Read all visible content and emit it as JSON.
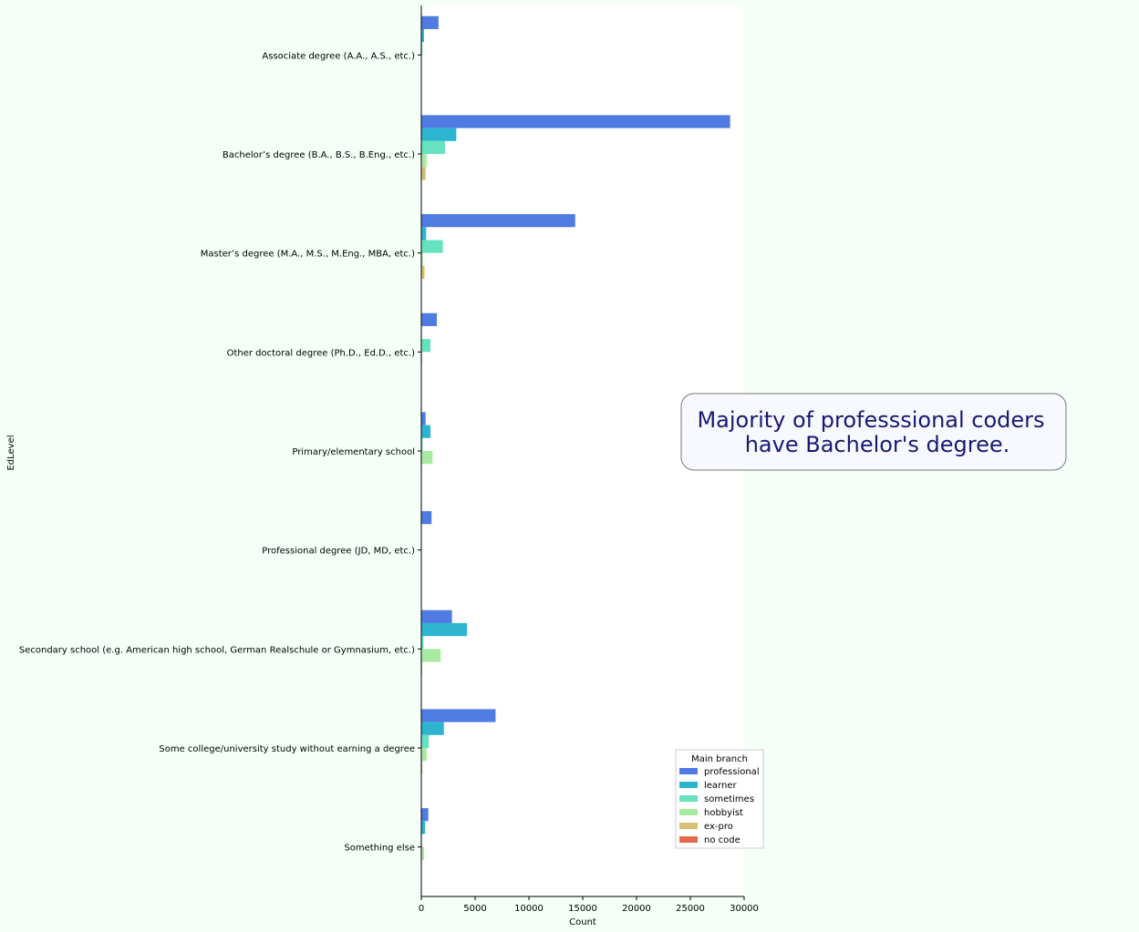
{
  "chart_data": {
    "type": "bar",
    "orientation": "horizontal",
    "xlabel": "Count",
    "ylabel": "EdLevel",
    "xlim": [
      0,
      30000
    ],
    "xticks": [
      0,
      5000,
      10000,
      15000,
      20000,
      25000,
      30000
    ],
    "grid": false,
    "legend_position": "lower right",
    "legend_title": "Main branch",
    "categories": [
      "Associate degree (A.A., A.S., etc.)",
      "Bachelor’s degree (B.A., B.S., B.Eng., etc.)",
      "Master’s degree (M.A., M.S., M.Eng., MBA, etc.)",
      "Other doctoral degree (Ph.D., Ed.D., etc.)",
      "Primary/elementary school",
      "Professional degree (JD, MD, etc.)",
      "Secondary school (e.g. American high school, German Realschule or Gymnasium, etc.)",
      "Some college/university study without earning a degree",
      "Something else"
    ],
    "series": [
      {
        "name": "professional",
        "color": "#4f7be3",
        "values": [
          1600,
          28700,
          14300,
          1450,
          400,
          950,
          2850,
          6900,
          650
        ]
      },
      {
        "name": "learner",
        "color": "#2db5d0",
        "values": [
          250,
          3250,
          450,
          50,
          850,
          20,
          4250,
          2100,
          350
        ]
      },
      {
        "name": "sometimes",
        "color": "#66e2c0",
        "values": [
          100,
          2200,
          2000,
          850,
          120,
          20,
          200,
          700,
          60
        ]
      },
      {
        "name": "hobbyist",
        "color": "#a9eaa3",
        "values": [
          40,
          500,
          150,
          80,
          1050,
          10,
          1800,
          500,
          250
        ]
      },
      {
        "name": "ex-pro",
        "color": "#d8bf75",
        "values": [
          20,
          400,
          300,
          20,
          10,
          15,
          80,
          100,
          30
        ]
      },
      {
        "name": "no code",
        "color": "#e26a4a",
        "values": [
          5,
          30,
          20,
          5,
          5,
          2,
          20,
          15,
          10
        ]
      }
    ],
    "annotation": {
      "lines": [
        "Majority of professsional coders",
        "have Bachelor's degree."
      ]
    }
  }
}
